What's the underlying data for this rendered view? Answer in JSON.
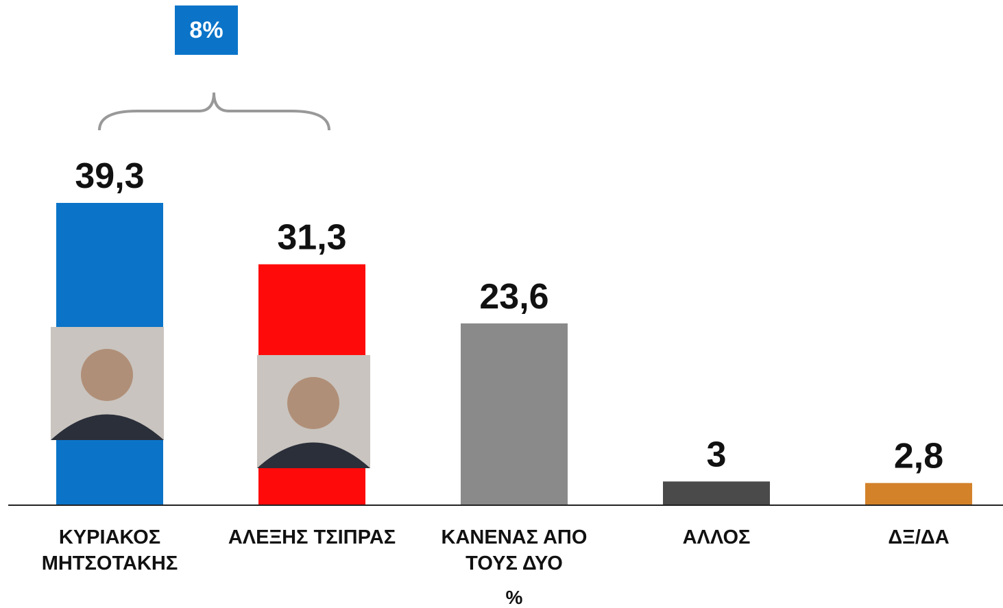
{
  "chart_data": {
    "type": "bar",
    "categories": [
      "ΚΥΡΙΑΚΟΣ ΜΗΤΣΟΤΑΚΗΣ",
      "ΑΛΕΞΗΣ ΤΣΙΠΡΑΣ",
      "ΚΑΝΕΝΑΣ ΑΠΟ ΤΟΥΣ ΔΥΟ",
      "ΑΛΛΟΣ",
      "ΔΞ/ΔΑ"
    ],
    "values": [
      39.3,
      31.3,
      23.6,
      3,
      2.8
    ],
    "value_labels": [
      "39,3",
      "31,3",
      "23,6",
      "3",
      "2,8"
    ],
    "colors": [
      "#0b74c8",
      "#ff0a0a",
      "#8a8a8a",
      "#4a4a4a",
      "#d3822a"
    ],
    "unit_label": "%",
    "annotation": "8%"
  }
}
